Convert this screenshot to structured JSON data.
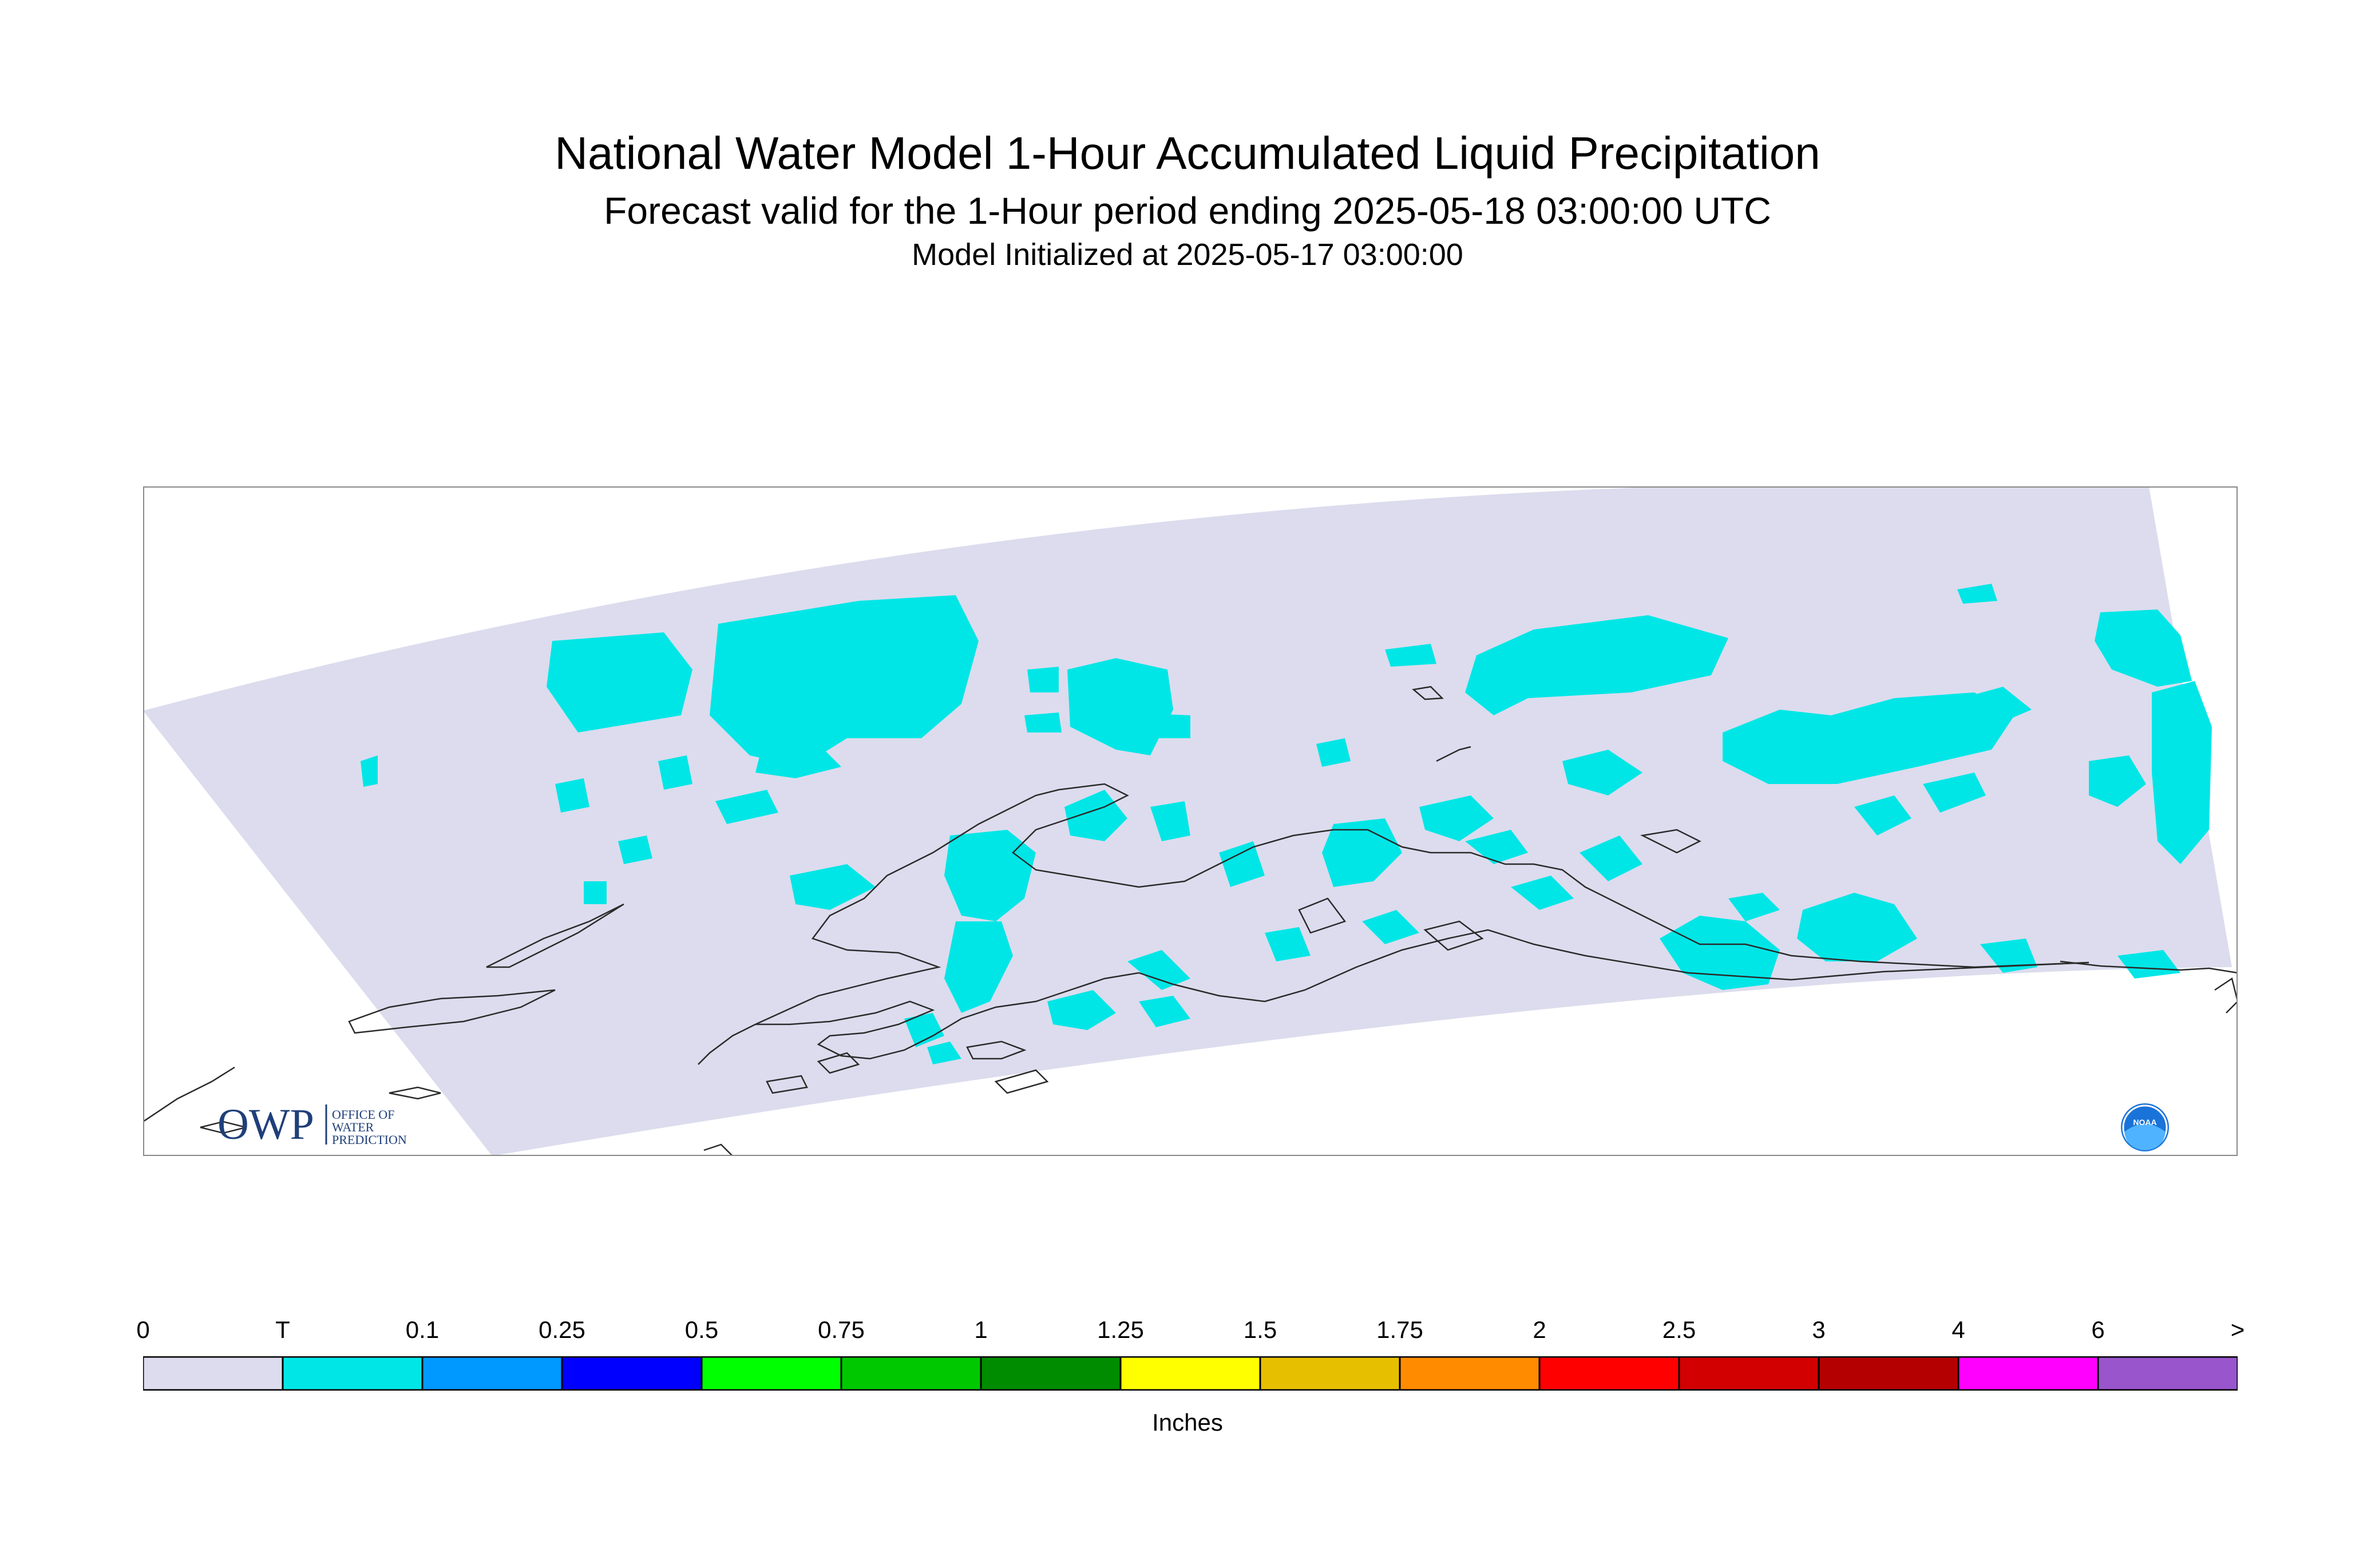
{
  "title": "National Water Model 1-Hour Accumulated Liquid Precipitation",
  "subtitle": "Forecast valid for the 1-Hour period ending 2025-05-18 03:00:00 UTC",
  "init_line": "Model Initialized at 2025-05-17 03:00:00",
  "logos": {
    "owp_mark": "OWP",
    "owp_text": [
      "OFFICE OF",
      "WATER",
      "PREDICTION"
    ],
    "noaa_text": "NOAA"
  },
  "colors": {
    "domain_fill": "#dcdcee",
    "trace": "#00e6e6",
    "coastline": "#2a2a2a",
    "frame": "#888888"
  },
  "legend": {
    "units": "Inches",
    "tick_labels": [
      "0",
      "T",
      "0.1",
      "0.25",
      "0.5",
      "0.75",
      "1",
      "1.25",
      "1.5",
      "1.75",
      "2",
      "2.5",
      "3",
      "4",
      "6",
      ">"
    ],
    "bins": [
      {
        "color": "#dcdcee"
      },
      {
        "color": "#00e6e6"
      },
      {
        "color": "#0099ff"
      },
      {
        "color": "#0000ff"
      },
      {
        "color": "#00ff00"
      },
      {
        "color": "#00c800"
      },
      {
        "color": "#008c00"
      },
      {
        "color": "#ffff00"
      },
      {
        "color": "#e6c000"
      },
      {
        "color": "#ff8c00"
      },
      {
        "color": "#ff0000"
      },
      {
        "color": "#d20000"
      },
      {
        "color": "#b40000"
      },
      {
        "color": "#ff00ff"
      },
      {
        "color": "#9955cc"
      }
    ]
  }
}
